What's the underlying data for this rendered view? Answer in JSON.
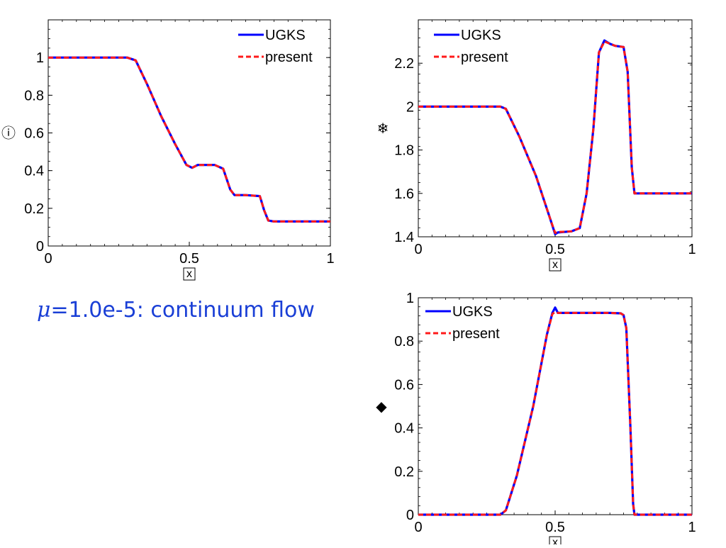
{
  "caption": {
    "symbol": "μ",
    "text": "=1.0e-5: continuum flow",
    "color": "#1a3fd6"
  },
  "colors": {
    "ugks": "#0000ff",
    "present": "#ff1a1a",
    "axis": "#000000"
  },
  "chart_data": [
    {
      "type": "line",
      "ylabel": "ⓘ",
      "xlabel": "x",
      "xlim": [
        0,
        1
      ],
      "ylim": [
        0,
        1.2
      ],
      "xticks": [
        "0",
        "0.5",
        "1"
      ],
      "yticks": [
        "0",
        "0.2",
        "0.4",
        "0.6",
        "0.8",
        "1"
      ],
      "legend_position": "top-right",
      "series": [
        {
          "name": "UGKS",
          "style": "solid",
          "x": [
            0,
            0.28,
            0.31,
            0.35,
            0.4,
            0.45,
            0.49,
            0.51,
            0.53,
            0.59,
            0.62,
            0.645,
            0.66,
            0.7,
            0.75,
            0.765,
            0.78,
            0.8,
            1.0
          ],
          "y": [
            1.0,
            1.0,
            0.985,
            0.86,
            0.69,
            0.54,
            0.43,
            0.415,
            0.43,
            0.43,
            0.41,
            0.3,
            0.27,
            0.27,
            0.265,
            0.19,
            0.135,
            0.13,
            0.13
          ]
        },
        {
          "name": "present",
          "style": "dashed",
          "x": [
            0,
            0.28,
            0.31,
            0.35,
            0.4,
            0.45,
            0.49,
            0.51,
            0.53,
            0.59,
            0.62,
            0.645,
            0.66,
            0.7,
            0.75,
            0.765,
            0.78,
            0.8,
            1.0
          ],
          "y": [
            1.0,
            1.0,
            0.985,
            0.86,
            0.69,
            0.54,
            0.43,
            0.415,
            0.43,
            0.43,
            0.41,
            0.3,
            0.27,
            0.27,
            0.265,
            0.19,
            0.135,
            0.13,
            0.13
          ]
        }
      ]
    },
    {
      "type": "line",
      "ylabel": "❄",
      "xlabel": "x",
      "xlim": [
        0,
        1
      ],
      "ylim": [
        1.4,
        2.4
      ],
      "xticks": [
        "0",
        "0.5",
        "1"
      ],
      "yticks": [
        "1.4",
        "1.6",
        "1.8",
        "2",
        "2.2"
      ],
      "legend_position": "top-left",
      "series": [
        {
          "name": "UGKS",
          "style": "solid",
          "x": [
            0,
            0.3,
            0.32,
            0.37,
            0.43,
            0.48,
            0.5,
            0.51,
            0.56,
            0.59,
            0.615,
            0.64,
            0.66,
            0.68,
            0.7,
            0.72,
            0.75,
            0.765,
            0.78,
            0.79,
            1.0
          ],
          "y": [
            2.0,
            2.0,
            1.99,
            1.86,
            1.68,
            1.49,
            1.412,
            1.42,
            1.425,
            1.44,
            1.6,
            1.9,
            2.25,
            2.305,
            2.29,
            2.28,
            2.275,
            2.16,
            1.72,
            1.6,
            1.6
          ]
        },
        {
          "name": "present",
          "style": "dashed",
          "x": [
            0,
            0.3,
            0.32,
            0.37,
            0.43,
            0.48,
            0.5,
            0.51,
            0.56,
            0.59,
            0.615,
            0.64,
            0.66,
            0.68,
            0.7,
            0.72,
            0.75,
            0.765,
            0.78,
            0.79,
            1.0
          ],
          "y": [
            2.0,
            2.0,
            1.99,
            1.86,
            1.68,
            1.49,
            1.418,
            1.422,
            1.425,
            1.44,
            1.6,
            1.9,
            2.25,
            2.3,
            2.29,
            2.28,
            2.275,
            2.16,
            1.72,
            1.6,
            1.6
          ]
        }
      ]
    },
    {
      "type": "line",
      "ylabel": "◆",
      "xlabel": "x",
      "xlim": [
        0,
        1
      ],
      "ylim": [
        0,
        1.0
      ],
      "xticks": [
        "0",
        "0.5",
        "1"
      ],
      "yticks": [
        "0",
        "0.2",
        "0.4",
        "0.6",
        "0.8",
        "1"
      ],
      "legend_position": "top-left",
      "series": [
        {
          "name": "UGKS",
          "style": "solid",
          "x": [
            0,
            0.3,
            0.32,
            0.36,
            0.42,
            0.47,
            0.49,
            0.5,
            0.51,
            0.55,
            0.6,
            0.7,
            0.74,
            0.75,
            0.76,
            0.775,
            0.785,
            0.79,
            1.0
          ],
          "y": [
            0,
            0,
            0.02,
            0.18,
            0.5,
            0.83,
            0.93,
            0.955,
            0.93,
            0.93,
            0.93,
            0.93,
            0.928,
            0.92,
            0.86,
            0.4,
            0.05,
            0,
            0
          ]
        },
        {
          "name": "present",
          "style": "dashed",
          "x": [
            0,
            0.3,
            0.32,
            0.36,
            0.42,
            0.47,
            0.49,
            0.5,
            0.51,
            0.55,
            0.6,
            0.7,
            0.74,
            0.75,
            0.76,
            0.775,
            0.785,
            0.79,
            1.0
          ],
          "y": [
            0,
            0,
            0.02,
            0.18,
            0.5,
            0.83,
            0.925,
            0.935,
            0.93,
            0.93,
            0.93,
            0.93,
            0.928,
            0.92,
            0.86,
            0.4,
            0.05,
            0,
            0
          ]
        }
      ]
    }
  ]
}
